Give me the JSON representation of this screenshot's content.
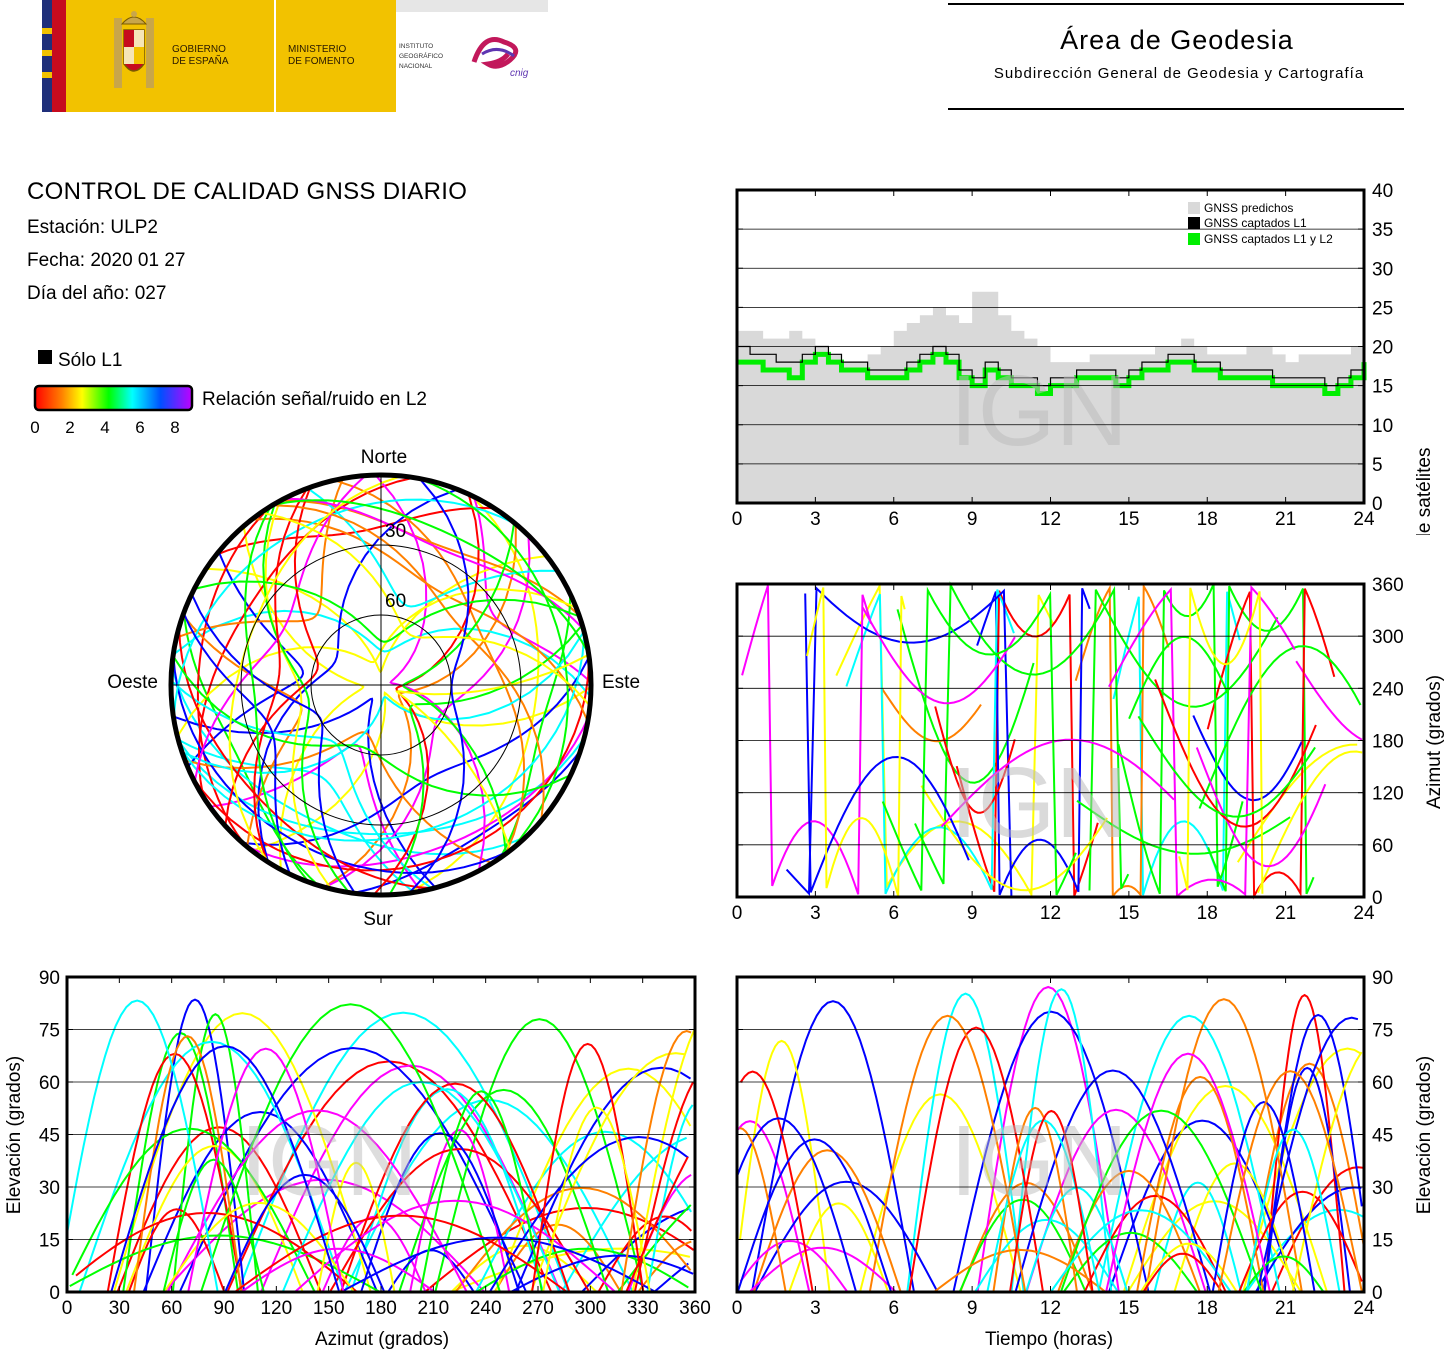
{
  "header": {
    "gobierno_line1": "GOBIERNO",
    "gobierno_line2": "DE ESPAÑA",
    "ministerio_line1": "MINISTERIO",
    "ministerio_line2": "DE FOMENTO",
    "instituto_line1": "INSTITUTO",
    "instituto_line2": "GEOGRÁFICO",
    "instituto_line3": "NACIONAL",
    "cnig_logo_text": "cnig",
    "area_title": "Área de Geodesia",
    "area_subtitle": "Subdirección General de Geodesia y Cartografía"
  },
  "report": {
    "title": "CONTROL DE CALIDAD GNSS DIARIO",
    "station": "Estación: ULP2",
    "date": "Fecha: 2020 01 27",
    "doy": "Día del año: 027"
  },
  "legend": {
    "solo_l1": "Sólo L1",
    "snr_label": "Relación señal/ruido en L2",
    "snr_ticks": [
      "0",
      "2",
      "4",
      "6",
      "8"
    ]
  },
  "watermark": "IGN",
  "colors": {
    "predicted": "#d9d9d9",
    "l1": "#000000",
    "l1l2": "#00ee00",
    "snr_scale": [
      "#ff0000",
      "#ff8000",
      "#ffff00",
      "#00ff00",
      "#00ffff",
      "#0000ff",
      "#ff00ff"
    ]
  },
  "chart_data": [
    {
      "id": "satellite-count",
      "type": "area",
      "title": "",
      "xlabel": "",
      "ylabel": "Número de satélites",
      "xlim": [
        0,
        24
      ],
      "ylim": [
        0,
        40
      ],
      "xticks": [
        "0",
        "3",
        "6",
        "9",
        "12",
        "15",
        "18",
        "21",
        "24"
      ],
      "yticks": [
        "0",
        "5",
        "10",
        "15",
        "20",
        "25",
        "30",
        "35",
        "40"
      ],
      "grid": true,
      "legend_position": "top-right",
      "series": [
        {
          "name": "GNSS predichos",
          "x": [
            0,
            0.5,
            1,
            1.5,
            2,
            2.5,
            3,
            3.5,
            4,
            4.5,
            5,
            5.5,
            6,
            6.5,
            7,
            7.5,
            8,
            8.5,
            9,
            9.5,
            10,
            10.5,
            11,
            11.5,
            12,
            12.5,
            13,
            13.5,
            14,
            14.5,
            15,
            15.5,
            16,
            16.5,
            17,
            17.5,
            18,
            18.5,
            19,
            19.5,
            20,
            20.5,
            21,
            21.5,
            22,
            22.5,
            23,
            23.5,
            24
          ],
          "values": [
            22,
            22,
            21,
            21,
            22,
            21,
            20,
            19,
            18,
            18,
            19,
            20,
            22,
            23,
            24,
            25,
            24,
            23,
            27,
            27,
            24,
            22,
            21,
            20,
            18,
            18,
            18,
            19,
            19,
            19,
            19,
            19,
            20,
            20,
            21,
            20,
            19,
            19,
            19,
            20,
            20,
            19,
            18,
            19,
            19,
            19,
            19,
            20,
            20
          ]
        },
        {
          "name": "GNSS captados L1",
          "x": [
            0,
            0.5,
            1,
            1.5,
            2,
            2.5,
            3,
            3.5,
            4,
            4.5,
            5,
            5.5,
            6,
            6.5,
            7,
            7.5,
            8,
            8.5,
            9,
            9.5,
            10,
            10.5,
            11,
            11.5,
            12,
            12.5,
            13,
            13.5,
            14,
            14.5,
            15,
            15.5,
            16,
            16.5,
            17,
            17.5,
            18,
            18.5,
            19,
            19.5,
            20,
            20.5,
            21,
            21.5,
            22,
            22.5,
            23,
            23.5,
            24
          ],
          "values": [
            20,
            19,
            19,
            18,
            18,
            19,
            20,
            19,
            18,
            18,
            17,
            17,
            17,
            18,
            19,
            20,
            19,
            17,
            16,
            18,
            17,
            16,
            16,
            15,
            16,
            16,
            17,
            17,
            17,
            16,
            17,
            18,
            18,
            19,
            19,
            18,
            18,
            17,
            17,
            17,
            17,
            16,
            16,
            16,
            16,
            15,
            16,
            17,
            19
          ]
        },
        {
          "name": "GNSS captados L1 y L2",
          "x": [
            0,
            0.5,
            1,
            1.5,
            2,
            2.5,
            3,
            3.5,
            4,
            4.5,
            5,
            5.5,
            6,
            6.5,
            7,
            7.5,
            8,
            8.5,
            9,
            9.5,
            10,
            10.5,
            11,
            11.5,
            12,
            12.5,
            13,
            13.5,
            14,
            14.5,
            15,
            15.5,
            16,
            16.5,
            17,
            17.5,
            18,
            18.5,
            19,
            19.5,
            20,
            20.5,
            21,
            21.5,
            22,
            22.5,
            23,
            23.5,
            24
          ],
          "values": [
            18,
            18,
            17,
            17,
            16,
            18,
            19,
            18,
            17,
            17,
            16,
            16,
            16,
            17,
            18,
            19,
            18,
            16,
            15,
            17,
            16,
            15,
            15,
            14,
            15,
            15,
            16,
            16,
            16,
            15,
            16,
            17,
            17,
            18,
            18,
            17,
            17,
            16,
            16,
            16,
            16,
            15,
            15,
            15,
            15,
            14,
            15,
            16,
            18
          ]
        }
      ]
    },
    {
      "id": "skyplot",
      "type": "scatter",
      "title": "",
      "subtype": "polar",
      "cardinals": {
        "north": "Norte",
        "south": "Sur",
        "east": "Este",
        "west": "Oeste"
      },
      "rings_elevation": [
        "30",
        "60"
      ],
      "note_arcs": "satellite tracks colored by L2 SNR"
    },
    {
      "id": "azimuth-vs-time",
      "type": "scatter",
      "title": "",
      "xlabel": "",
      "ylabel": "Azimut (grados)",
      "xlim": [
        0,
        24
      ],
      "ylim": [
        0,
        360
      ],
      "xticks": [
        "0",
        "3",
        "6",
        "9",
        "12",
        "15",
        "18",
        "21",
        "24"
      ],
      "yticks": [
        "0",
        "60",
        "120",
        "180",
        "240",
        "300",
        "360"
      ],
      "grid": true
    },
    {
      "id": "elevation-vs-azimuth",
      "type": "scatter",
      "title": "",
      "xlabel": "Azimut (grados)",
      "ylabel": "Elevación (grados)",
      "xlim": [
        0,
        360
      ],
      "ylim": [
        0,
        90
      ],
      "xticks": [
        "0",
        "30",
        "60",
        "90",
        "120",
        "150",
        "180",
        "210",
        "240",
        "270",
        "300",
        "330",
        "360"
      ],
      "yticks": [
        "0",
        "15",
        "30",
        "45",
        "60",
        "75",
        "90"
      ],
      "grid": true
    },
    {
      "id": "elevation-vs-time",
      "type": "scatter",
      "title": "",
      "xlabel": "Tiempo (horas)",
      "ylabel": "Elevación (grados)",
      "xlim": [
        0,
        24
      ],
      "ylim": [
        0,
        90
      ],
      "xticks": [
        "0",
        "3",
        "6",
        "9",
        "12",
        "15",
        "18",
        "21",
        "24"
      ],
      "yticks": [
        "0",
        "15",
        "30",
        "45",
        "60",
        "75",
        "90"
      ],
      "grid": true
    }
  ]
}
